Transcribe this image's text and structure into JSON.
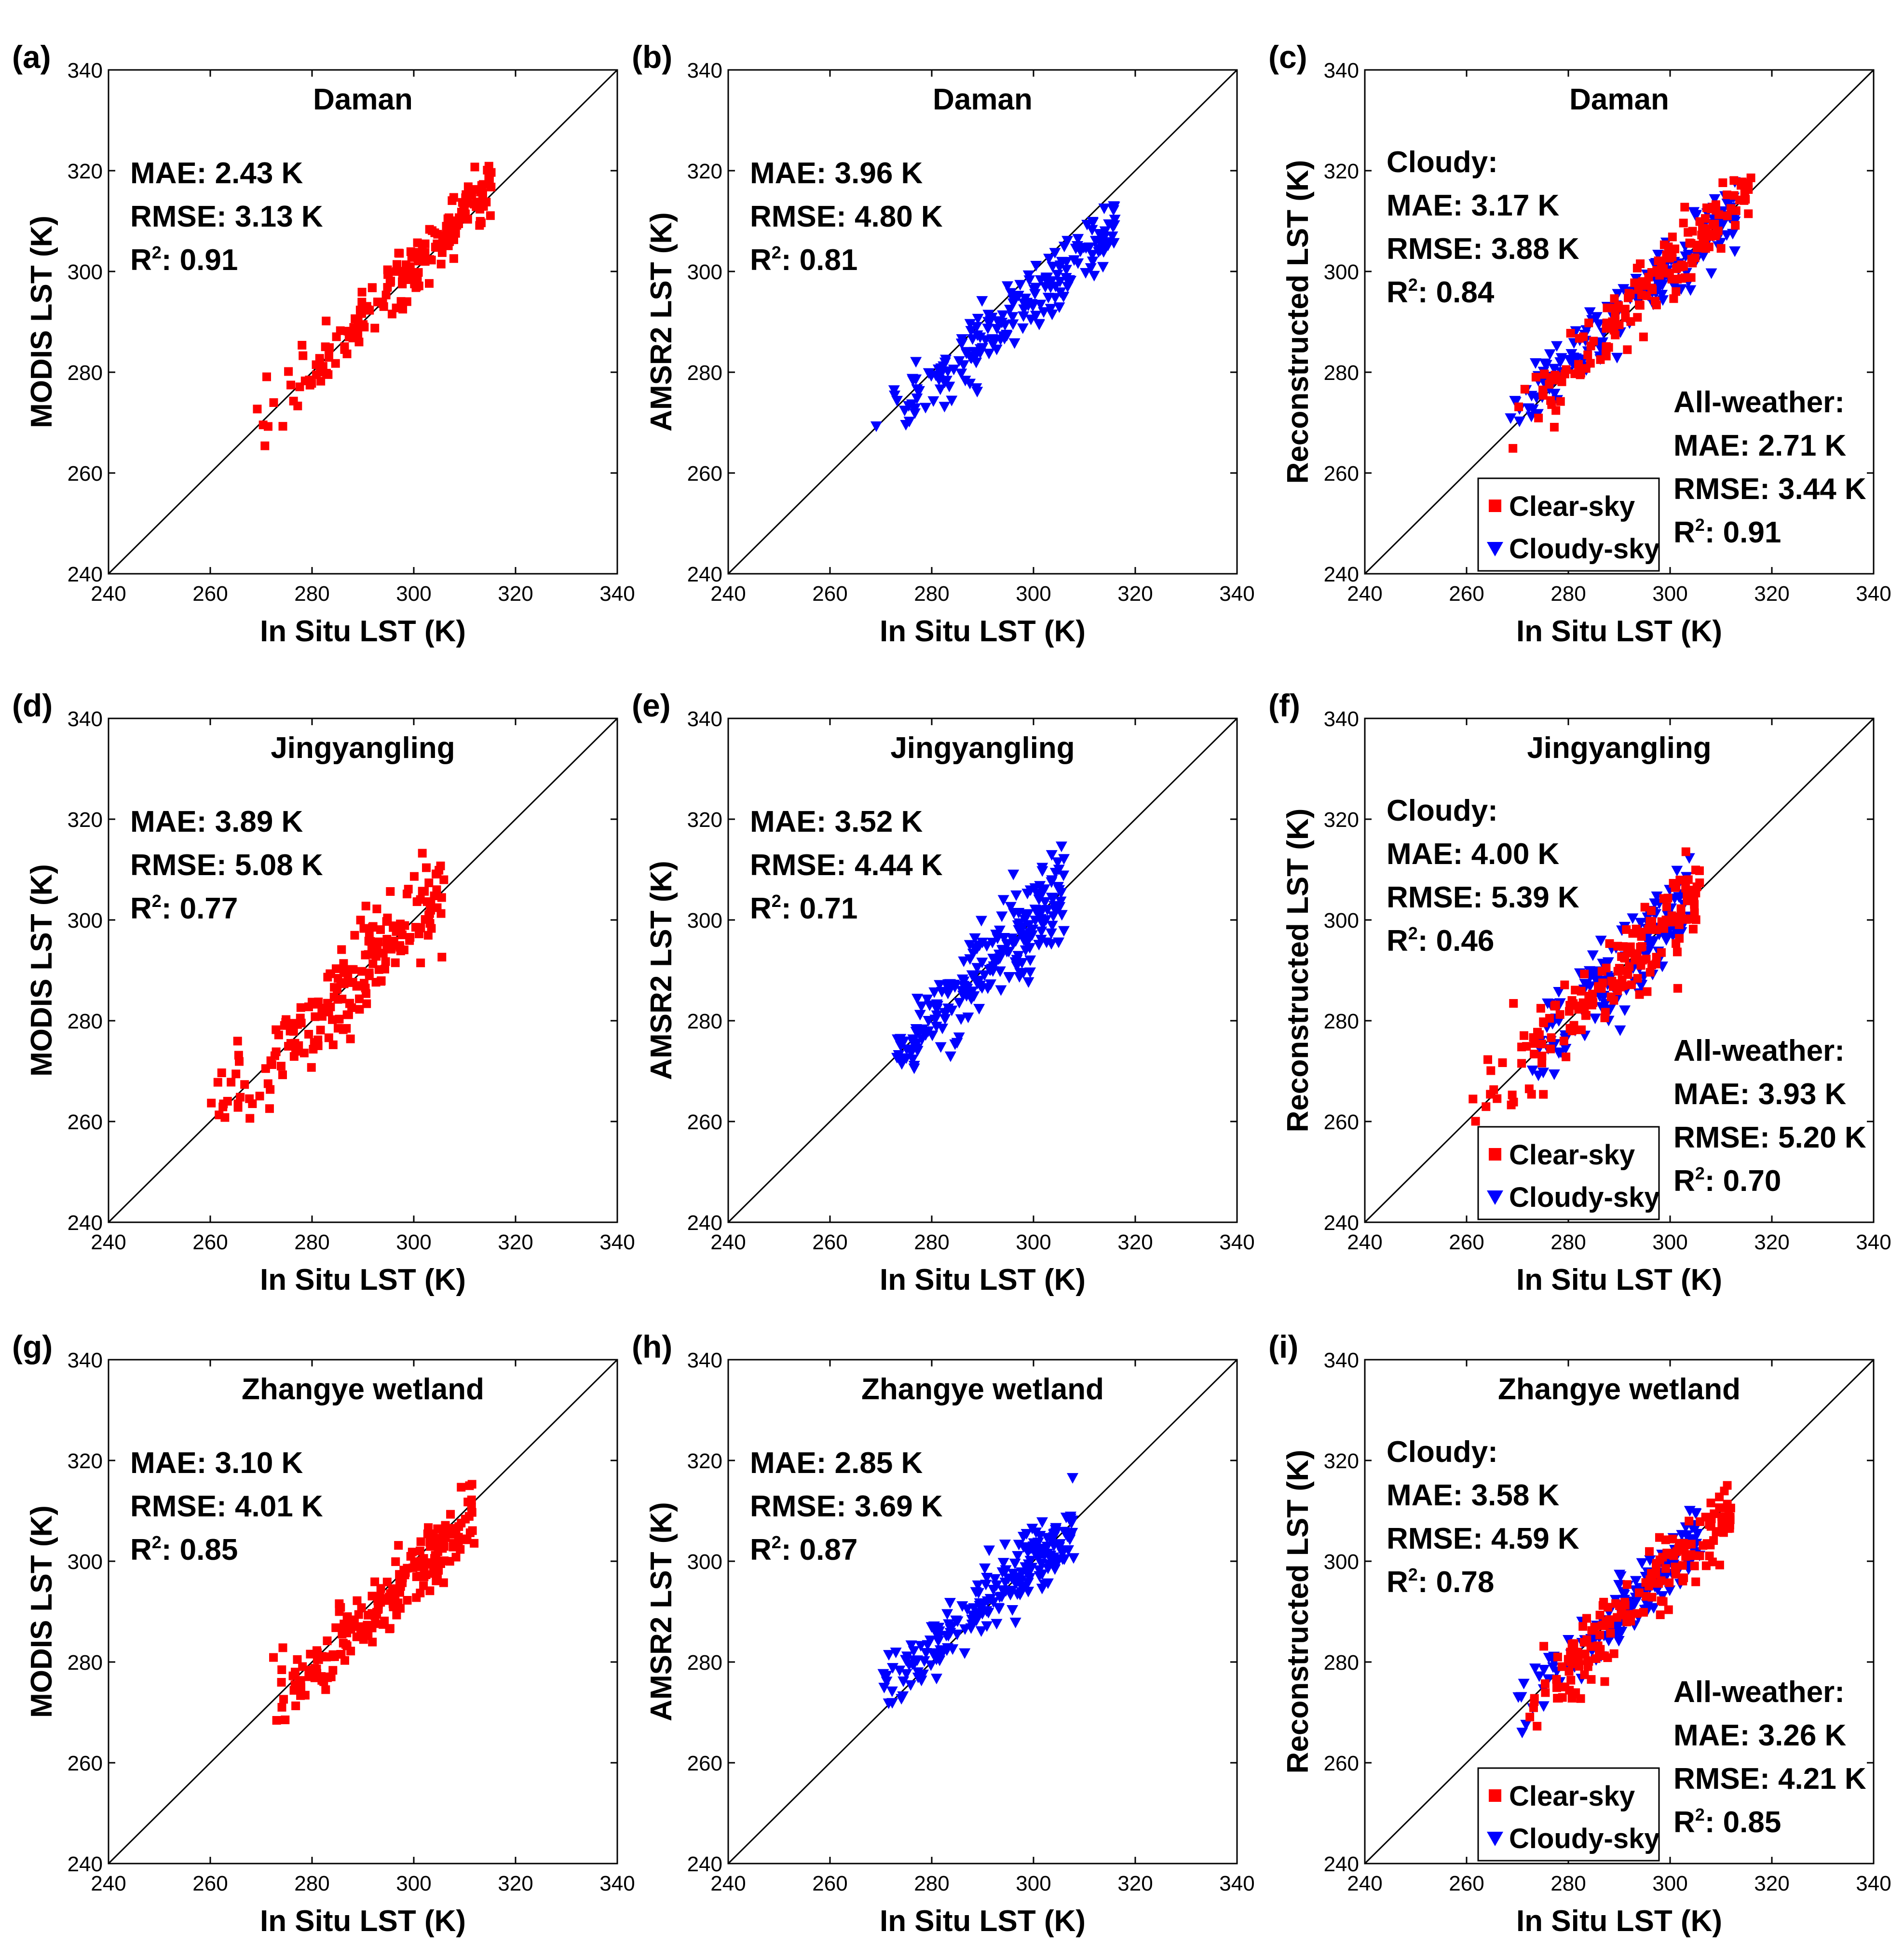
{
  "figure": {
    "colors": {
      "clear": "#ff0000",
      "cloudy": "#0000ff",
      "axis": "#000000"
    },
    "axis_range": [
      240,
      340
    ],
    "ticks": [
      240,
      260,
      280,
      300,
      320,
      340
    ],
    "xlabel": "In Situ LST (K)"
  },
  "chart_data": [
    {
      "id": "a",
      "label": "(a)",
      "type": "scatter",
      "site": "Daman",
      "ylabel": "MODIS LST (K)",
      "xlabel": "In Situ LST (K)",
      "xlim": [
        240,
        340
      ],
      "ylim": [
        240,
        340
      ],
      "stats": [
        {
          "text": "MAE: 2.43 K"
        },
        {
          "text": "RMSE: 3.13 K"
        },
        {
          "text": "R",
          "sup": "2",
          "tail": ": 0.91"
        }
      ],
      "series": [
        {
          "name": "MODIS",
          "marker": "square",
          "color": "#ff0000",
          "cluster": {
            "x_range": [
              269,
              316
            ],
            "slope": 1.0,
            "intercept": 1,
            "scatter_sd": 3.0,
            "n": 200
          }
        }
      ]
    },
    {
      "id": "b",
      "label": "(b)",
      "type": "scatter",
      "site": "Daman",
      "ylabel": "AMSR2 LST (K)",
      "xlabel": "In Situ LST (K)",
      "xlim": [
        240,
        340
      ],
      "ylim": [
        240,
        340
      ],
      "stats": [
        {
          "text": "MAE: 3.96 K"
        },
        {
          "text": "RMSE: 4.80 K"
        },
        {
          "text": "R",
          "sup": "2",
          "tail": ": 0.81"
        }
      ],
      "series": [
        {
          "name": "AMSR2",
          "marker": "triangle",
          "color": "#0000ff",
          "cluster": {
            "x_range": [
              269,
              316
            ],
            "slope": 0.85,
            "intercept": 40,
            "scatter_sd": 3.5,
            "n": 200
          }
        }
      ]
    },
    {
      "id": "c",
      "label": "(c)",
      "type": "scatter",
      "site": "Daman",
      "ylabel": "Reconstructed LST (K)",
      "xlabel": "In Situ LST (K)",
      "xlim": [
        240,
        340
      ],
      "ylim": [
        240,
        340
      ],
      "stats": [
        {
          "text": "Cloudy:"
        },
        {
          "text": "MAE: 3.17 K"
        },
        {
          "text": "RMSE: 3.88 K"
        },
        {
          "text": "R",
          "sup": "2",
          "tail": ": 0.84"
        }
      ],
      "stats2": [
        {
          "text": "All-weather:"
        },
        {
          "text": "MAE: 2.71 K"
        },
        {
          "text": "RMSE: 3.44 K"
        },
        {
          "text": "R",
          "sup": "2",
          "tail": ": 0.91"
        }
      ],
      "legend": [
        {
          "name": "Clear-sky",
          "marker": "square",
          "color": "#ff0000"
        },
        {
          "name": "Cloudy-sky",
          "marker": "triangle",
          "color": "#0000ff"
        }
      ],
      "series": [
        {
          "name": "Cloudy-sky",
          "marker": "triangle",
          "color": "#0000ff",
          "cluster": {
            "x_range": [
              267,
              313
            ],
            "slope": 0.9,
            "intercept": 30,
            "scatter_sd": 3.2,
            "n": 170
          }
        },
        {
          "name": "Clear-sky",
          "marker": "square",
          "color": "#ff0000",
          "cluster": {
            "x_range": [
              269,
              316
            ],
            "slope": 1.0,
            "intercept": 1,
            "scatter_sd": 3.0,
            "n": 170
          }
        }
      ]
    },
    {
      "id": "d",
      "label": "(d)",
      "type": "scatter",
      "site": "Jingyangling",
      "ylabel": "MODIS LST (K)",
      "xlabel": "In Situ LST (K)",
      "xlim": [
        240,
        340
      ],
      "ylim": [
        240,
        340
      ],
      "stats": [
        {
          "text": "MAE: 3.89 K"
        },
        {
          "text": "RMSE: 5.08 K"
        },
        {
          "text": "R",
          "sup": "2",
          "tail": ": 0.77"
        }
      ],
      "series": [
        {
          "name": "MODIS",
          "marker": "square",
          "color": "#ff0000",
          "cluster": {
            "x_range": [
              260,
              306
            ],
            "slope": 1.0,
            "intercept": 0,
            "scatter_sd": 4.5,
            "n": 200
          }
        }
      ]
    },
    {
      "id": "e",
      "label": "(e)",
      "type": "scatter",
      "site": "Jingyangling",
      "ylabel": "AMSR2 LST (K)",
      "xlabel": "In Situ LST (K)",
      "xlim": [
        240,
        340
      ],
      "ylim": [
        240,
        340
      ],
      "stats": [
        {
          "text": "MAE: 3.52 K"
        },
        {
          "text": "RMSE: 4.44 K"
        },
        {
          "text": "R",
          "sup": "2",
          "tail": ": 0.71"
        }
      ],
      "series": [
        {
          "name": "AMSR2",
          "marker": "triangle",
          "color": "#0000ff",
          "cluster": {
            "x_range": [
              272,
              306
            ],
            "slope": 1.0,
            "intercept": 0,
            "scatter_sd": 4.5,
            "n": 220
          }
        }
      ]
    },
    {
      "id": "f",
      "label": "(f)",
      "type": "scatter",
      "site": "Jingyangling",
      "ylabel": "Reconstructed LST (K)",
      "xlabel": "In Situ LST (K)",
      "xlim": [
        240,
        340
      ],
      "ylim": [
        240,
        340
      ],
      "stats": [
        {
          "text": "Cloudy:"
        },
        {
          "text": "MAE: 4.00 K"
        },
        {
          "text": "RMSE: 5.39 K"
        },
        {
          "text": "R",
          "sup": "2",
          "tail": ": 0.46"
        }
      ],
      "stats2": [
        {
          "text": "All-weather:"
        },
        {
          "text": "MAE: 3.93 K"
        },
        {
          "text": "RMSE: 5.20 K"
        },
        {
          "text": "R",
          "sup": "2",
          "tail": ": 0.70"
        }
      ],
      "legend": [
        {
          "name": "Clear-sky",
          "marker": "square",
          "color": "#ff0000"
        },
        {
          "name": "Cloudy-sky",
          "marker": "triangle",
          "color": "#0000ff"
        }
      ],
      "series": [
        {
          "name": "Cloudy-sky",
          "marker": "triangle",
          "color": "#0000ff",
          "cluster": {
            "x_range": [
              272,
              304
            ],
            "slope": 1.0,
            "intercept": 0,
            "scatter_sd": 5.0,
            "n": 150
          }
        },
        {
          "name": "Clear-sky",
          "marker": "square",
          "color": "#ff0000",
          "cluster": {
            "x_range": [
              260,
              306
            ],
            "slope": 1.0,
            "intercept": 0,
            "scatter_sd": 4.5,
            "n": 170
          }
        }
      ]
    },
    {
      "id": "g",
      "label": "(g)",
      "type": "scatter",
      "site": "Zhangye wetland",
      "ylabel": "MODIS LST (K)",
      "xlabel": "In Situ LST (K)",
      "xlim": [
        240,
        340
      ],
      "ylim": [
        240,
        340
      ],
      "stats": [
        {
          "text": "MAE: 3.10 K"
        },
        {
          "text": "RMSE: 4.01 K"
        },
        {
          "text": "R",
          "sup": "2",
          "tail": ": 0.85"
        }
      ],
      "series": [
        {
          "name": "MODIS",
          "marker": "square",
          "color": "#ff0000",
          "cluster": {
            "x_range": [
              272,
              312
            ],
            "slope": 1.0,
            "intercept": -2,
            "scatter_sd": 3.5,
            "n": 220
          }
        }
      ]
    },
    {
      "id": "h",
      "label": "(h)",
      "type": "scatter",
      "site": "Zhangye wetland",
      "ylabel": "AMSR2 LST (K)",
      "xlabel": "In Situ LST (K)",
      "xlim": [
        240,
        340
      ],
      "ylim": [
        240,
        340
      ],
      "stats": [
        {
          "text": "MAE: 2.85 K"
        },
        {
          "text": "RMSE: 3.69 K"
        },
        {
          "text": "R",
          "sup": "2",
          "tail": ": 0.87"
        }
      ],
      "series": [
        {
          "name": "AMSR2",
          "marker": "triangle",
          "color": "#0000ff",
          "cluster": {
            "x_range": [
              270,
              308
            ],
            "slope": 0.9,
            "intercept": 30,
            "scatter_sd": 3.5,
            "n": 220
          }
        }
      ]
    },
    {
      "id": "i",
      "label": "(i)",
      "type": "scatter",
      "site": "Zhangye wetland",
      "ylabel": "Reconstructed LST (K)",
      "xlabel": "In Situ LST (K)",
      "xlim": [
        240,
        340
      ],
      "ylim": [
        240,
        340
      ],
      "stats": [
        {
          "text": "Cloudy:"
        },
        {
          "text": "MAE: 3.58 K"
        },
        {
          "text": "RMSE: 4.59 K"
        },
        {
          "text": "R",
          "sup": "2",
          "tail": ": 0.78"
        }
      ],
      "stats2": [
        {
          "text": "All-weather:"
        },
        {
          "text": "MAE: 3.26 K"
        },
        {
          "text": "RMSE: 4.21 K"
        },
        {
          "text": "R",
          "sup": "2",
          "tail": ": 0.85"
        }
      ],
      "legend": [
        {
          "name": "Clear-sky",
          "marker": "square",
          "color": "#ff0000"
        },
        {
          "name": "Cloudy-sky",
          "marker": "triangle",
          "color": "#0000ff"
        }
      ],
      "series": [
        {
          "name": "Cloudy-sky",
          "marker": "triangle",
          "color": "#0000ff",
          "cluster": {
            "x_range": [
              270,
              306
            ],
            "slope": 0.95,
            "intercept": 14,
            "scatter_sd": 3.0,
            "n": 150
          }
        },
        {
          "name": "Clear-sky",
          "marker": "square",
          "color": "#ff0000",
          "cluster": {
            "x_range": [
              272,
              312
            ],
            "slope": 1.0,
            "intercept": -2,
            "scatter_sd": 3.5,
            "n": 170
          }
        }
      ]
    }
  ]
}
